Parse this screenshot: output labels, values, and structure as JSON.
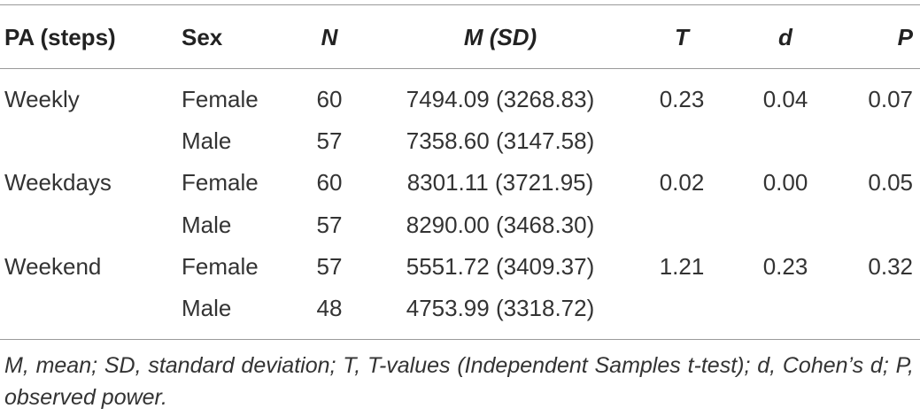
{
  "table": {
    "header": [
      "PA (steps)",
      "Sex",
      "N",
      "M (SD)",
      "T",
      "d",
      "P"
    ],
    "rows": [
      [
        "Weekly",
        "Female",
        "60",
        "7494.09 (3268.83)",
        "0.23",
        "0.04",
        "0.07"
      ],
      [
        null,
        "Male",
        "57",
        "7358.60 (3147.58)",
        null,
        null,
        null
      ],
      [
        "Weekdays",
        "Female",
        "60",
        "8301.11 (3721.95)",
        "0.02",
        "0.00",
        "0.05"
      ],
      [
        null,
        "Male",
        "57",
        "8290.00 (3468.30)",
        null,
        null,
        null
      ],
      [
        "Weekend",
        "Female",
        "57",
        "5551.72 (3409.37)",
        "1.21",
        "0.23",
        "0.32"
      ],
      [
        null,
        "Male",
        "48",
        "4753.99 (3318.72)",
        null,
        null,
        null
      ]
    ],
    "footnote": "M, mean; SD, standard deviation; T, T-values (Independent Samples t-test); d, Cohen’s d; P, observed power."
  }
}
